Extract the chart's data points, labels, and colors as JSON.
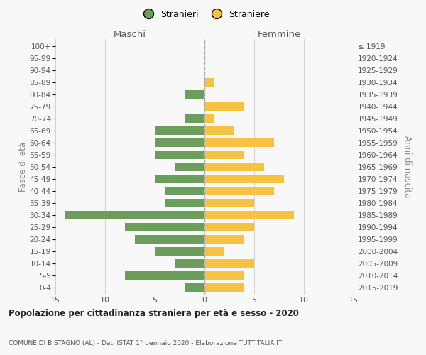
{
  "age_groups": [
    "100+",
    "95-99",
    "90-94",
    "85-89",
    "80-84",
    "75-79",
    "70-74",
    "65-69",
    "60-64",
    "55-59",
    "50-54",
    "45-49",
    "40-44",
    "35-39",
    "30-34",
    "25-29",
    "20-24",
    "15-19",
    "10-14",
    "5-9",
    "0-4"
  ],
  "birth_years": [
    "≤ 1919",
    "1920-1924",
    "1925-1929",
    "1930-1934",
    "1935-1939",
    "1940-1944",
    "1945-1949",
    "1950-1954",
    "1955-1959",
    "1960-1964",
    "1965-1969",
    "1970-1974",
    "1975-1979",
    "1980-1984",
    "1985-1989",
    "1990-1994",
    "1995-1999",
    "2000-2004",
    "2005-2009",
    "2010-2014",
    "2015-2019"
  ],
  "maschi": [
    0,
    0,
    0,
    0,
    2,
    0,
    2,
    5,
    5,
    5,
    3,
    5,
    4,
    4,
    14,
    8,
    7,
    5,
    3,
    8,
    2
  ],
  "femmine": [
    0,
    0,
    0,
    1,
    0,
    4,
    1,
    3,
    7,
    4,
    6,
    8,
    7,
    5,
    9,
    5,
    4,
    2,
    5,
    4,
    4
  ],
  "color_maschi": "#6a9e5a",
  "color_femmine": "#f5c242",
  "title": "Popolazione per cittadinanza straniera per età e sesso - 2020",
  "subtitle": "COMUNE DI BISTAGNO (AL) - Dati ISTAT 1° gennaio 2020 - Elaborazione TUTTITALIA.IT",
  "ylabel_left": "Fasce di età",
  "ylabel_right": "Anni di nascita",
  "header_left": "Maschi",
  "header_right": "Femmine",
  "legend_maschi": "Stranieri",
  "legend_femmine": "Straniere",
  "xlim": 15,
  "background_color": "#f8f8f8",
  "grid_color": "#cccccc",
  "dashed_line_color": "#aaaaaa"
}
